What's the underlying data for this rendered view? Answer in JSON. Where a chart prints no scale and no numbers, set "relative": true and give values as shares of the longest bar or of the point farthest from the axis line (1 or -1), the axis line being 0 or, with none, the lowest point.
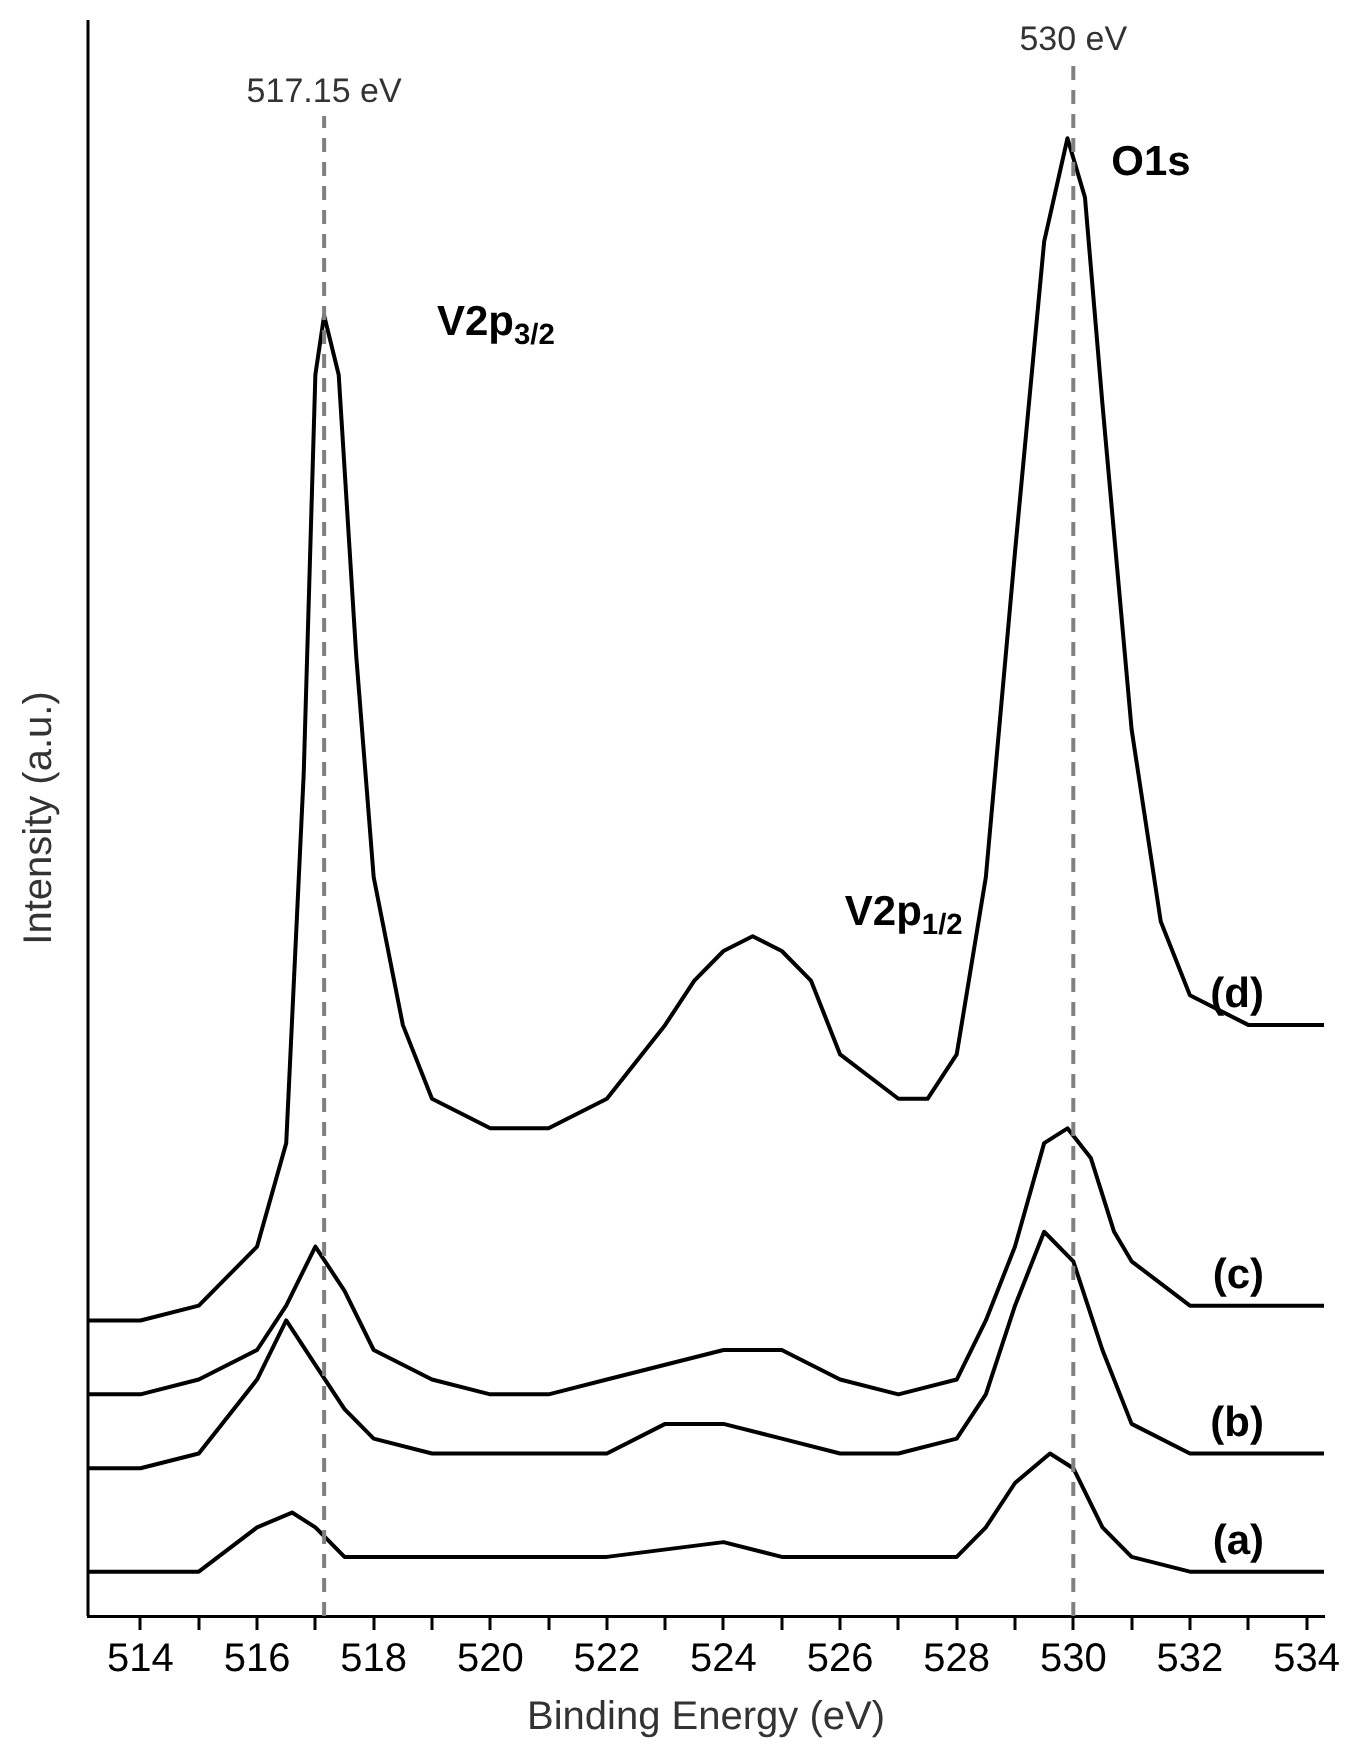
{
  "chart_data": {
    "type": "line",
    "xlabel": "Binding Energy (eV)",
    "ylabel": "Intensity (a.u.)",
    "relative": true,
    "tick_labels": "x",
    "grid": false,
    "legend": false,
    "marker": "none",
    "line_style": "solid",
    "xlim": [
      513.1,
      534.3
    ],
    "xticks": [
      514,
      {
        "value": 515,
        "label": null
      },
      516,
      {
        "value": 517,
        "label": null
      },
      518,
      {
        "value": 519,
        "label": null
      },
      520,
      {
        "value": 521,
        "label": null
      },
      522,
      {
        "value": 523,
        "label": null
      },
      524,
      {
        "value": 525,
        "label": null
      },
      526,
      {
        "value": 527,
        "label": null
      },
      528,
      {
        "value": 529,
        "label": null
      },
      530,
      {
        "value": 531,
        "label": null
      },
      532,
      {
        "value": 533,
        "label": null
      },
      534
    ],
    "ref_lines": [
      {
        "axis": "x",
        "value": 517.15,
        "label": "517.15 eV",
        "color": "#808080",
        "line_style": "dashed"
      },
      {
        "axis": "x",
        "value": 530,
        "label": "530 eV",
        "color": "#808080",
        "line_style": "dashed"
      }
    ],
    "annotations": [
      "V2p$_{3/2}$",
      "V2p$_{1/2}$",
      "O1s"
    ],
    "series": [
      {
        "name": "(d)",
        "color": "#000000",
        "x": [
          513.1,
          514,
          515,
          516,
          516.5,
          516.8,
          517,
          517.15,
          517.4,
          517.7,
          518,
          518.5,
          519,
          520,
          521,
          522,
          523,
          523.5,
          524,
          524.5,
          525,
          525.5,
          526,
          527,
          527.5,
          528,
          528.5,
          529,
          529.5,
          529.9,
          530.2,
          530.5,
          531,
          531.5,
          532,
          533,
          534,
          534.3
        ],
        "values": [
          0.2,
          0.2,
          0.21,
          0.25,
          0.32,
          0.57,
          0.84,
          0.88,
          0.84,
          0.65,
          0.5,
          0.4,
          0.35,
          0.33,
          0.33,
          0.35,
          0.4,
          0.43,
          0.45,
          0.46,
          0.45,
          0.43,
          0.38,
          0.35,
          0.35,
          0.38,
          0.5,
          0.72,
          0.93,
          1.0,
          0.96,
          0.82,
          0.6,
          0.47,
          0.42,
          0.4,
          0.4,
          0.4
        ]
      },
      {
        "name": "(c)",
        "color": "#000000",
        "x": [
          513.1,
          514,
          515,
          516,
          516.5,
          517,
          517.5,
          518,
          519,
          520,
          521,
          522,
          523,
          524,
          525,
          526,
          527,
          528,
          528.5,
          529,
          529.5,
          529.9,
          530.3,
          530.7,
          531,
          532,
          533,
          534,
          534.3
        ],
        "values": [
          0.15,
          0.15,
          0.16,
          0.18,
          0.21,
          0.25,
          0.22,
          0.18,
          0.16,
          0.15,
          0.15,
          0.16,
          0.17,
          0.18,
          0.18,
          0.16,
          0.15,
          0.16,
          0.2,
          0.25,
          0.32,
          0.33,
          0.31,
          0.26,
          0.24,
          0.21,
          0.21,
          0.21,
          0.21
        ]
      },
      {
        "name": "(b)",
        "color": "#000000",
        "x": [
          513.1,
          514,
          515,
          516,
          516.5,
          517,
          517.5,
          518,
          519,
          520,
          522,
          523,
          524,
          525,
          526,
          527,
          528,
          528.5,
          529,
          529.5,
          530,
          530.5,
          531,
          532,
          533,
          534,
          534.3
        ],
        "values": [
          0.1,
          0.1,
          0.11,
          0.16,
          0.2,
          0.17,
          0.14,
          0.12,
          0.11,
          0.11,
          0.11,
          0.13,
          0.13,
          0.12,
          0.11,
          0.11,
          0.12,
          0.15,
          0.21,
          0.26,
          0.24,
          0.18,
          0.13,
          0.11,
          0.11,
          0.11,
          0.11
        ]
      },
      {
        "name": "(a)",
        "color": "#000000",
        "x": [
          513.1,
          514,
          515,
          516,
          516.6,
          517,
          517.5,
          518,
          520,
          522,
          524,
          525,
          526,
          527,
          528,
          528.5,
          529,
          529.6,
          530,
          530.5,
          531,
          532,
          534,
          534.3
        ],
        "values": [
          0.03,
          0.03,
          0.03,
          0.06,
          0.07,
          0.06,
          0.04,
          0.04,
          0.04,
          0.04,
          0.05,
          0.04,
          0.04,
          0.04,
          0.04,
          0.06,
          0.09,
          0.11,
          0.1,
          0.06,
          0.04,
          0.03,
          0.03,
          0.03
        ]
      }
    ]
  }
}
